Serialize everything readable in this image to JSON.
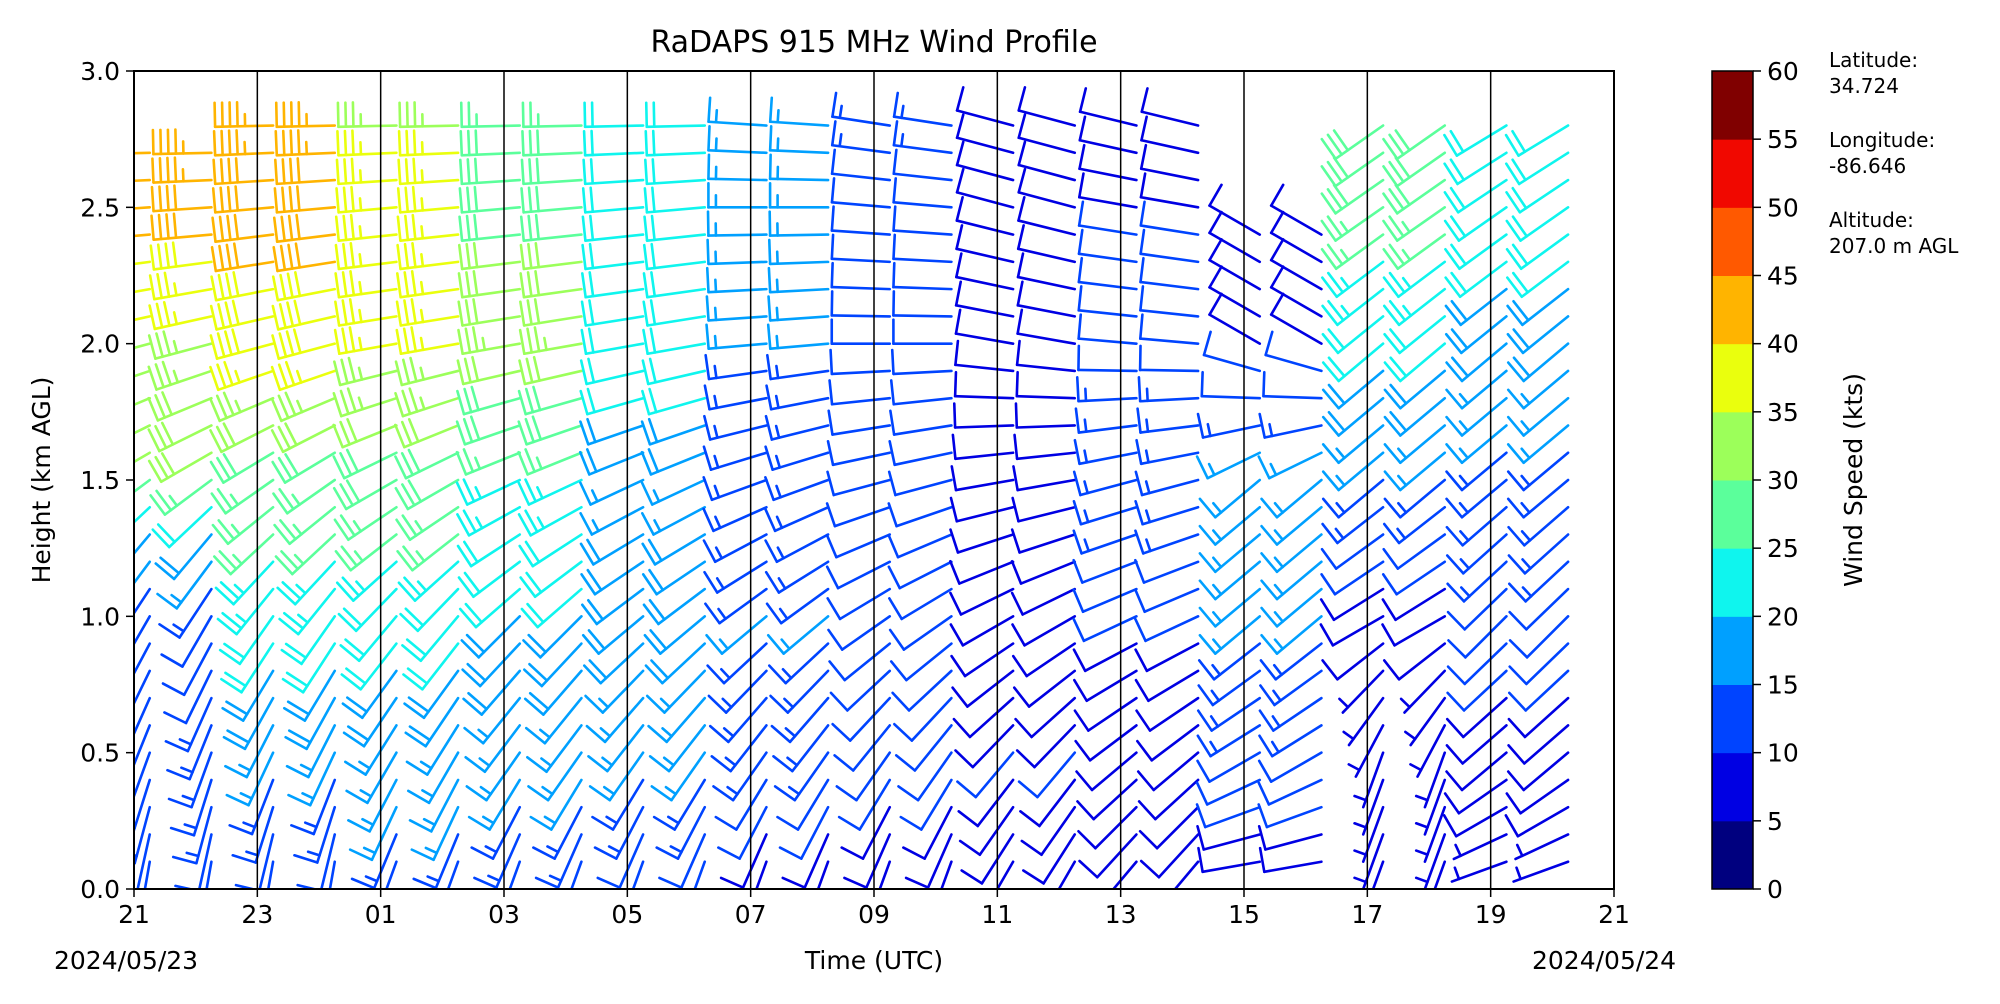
{
  "chart_data": {
    "type": "wind_barb_profile",
    "title": "RaDAPS 915 MHz Wind Profile",
    "xlabel": "Time (UTC)",
    "ylabel": "Height (km AGL)",
    "x_tick_labels": [
      "21",
      "23",
      "01",
      "03",
      "05",
      "07",
      "09",
      "11",
      "13",
      "15",
      "17",
      "19",
      "21"
    ],
    "x_ticks_hours_from_start": [
      0,
      2,
      4,
      6,
      8,
      10,
      12,
      14,
      16,
      18,
      20,
      22,
      24
    ],
    "date_start": "2024/05/23",
    "date_end": "2024/05/24",
    "ylim": [
      0.0,
      3.0
    ],
    "y_ticks": [
      0.0,
      0.5,
      1.0,
      1.5,
      2.0,
      2.5,
      3.0
    ],
    "y_tick_labels": [
      "0.0",
      "0.5",
      "1.0",
      "1.5",
      "2.0",
      "2.5",
      "3.0"
    ],
    "colorbar": {
      "label": "Wind Speed (kts)",
      "bounds": [
        0,
        5,
        10,
        15,
        20,
        25,
        30,
        35,
        40,
        45,
        50,
        55,
        60
      ],
      "tick_labels": [
        "0",
        "5",
        "10",
        "15",
        "20",
        "25",
        "30",
        "35",
        "40",
        "45",
        "50",
        "55",
        "60"
      ],
      "colors": [
        "#00007f",
        "#0000e3",
        "#0044ff",
        "#00a0ff",
        "#0ff5ee",
        "#5bff9b",
        "#9cff5a",
        "#eaff0d",
        "#ffb400",
        "#ff5900",
        "#f10800",
        "#800000"
      ]
    },
    "site_info": {
      "latitude_label": "Latitude:",
      "latitude": "34.724",
      "longitude_label": "Longitude:",
      "longitude": "-86.646",
      "altitude_label": "Altitude:",
      "altitude": "207.0 m AGL"
    },
    "profile_groups": [
      {
        "start": "21",
        "levels": [
          {
            "h": 0.1,
            "speed": 12,
            "dir": 190
          },
          {
            "h": 0.5,
            "speed": 13,
            "dir": 200
          },
          {
            "h": 1.0,
            "speed": 12,
            "dir": 210
          },
          {
            "h": 1.3,
            "speed": 18,
            "dir": 220
          },
          {
            "h": 1.6,
            "speed": 30,
            "dir": 240
          },
          {
            "h": 2.0,
            "speed": 34,
            "dir": 255
          },
          {
            "h": 2.4,
            "speed": 40,
            "dir": 265
          },
          {
            "h": 2.8,
            "speed": 46,
            "dir": 270
          }
        ]
      },
      {
        "start": "23",
        "levels": [
          {
            "h": 0.1,
            "speed": 10,
            "dir": 190
          },
          {
            "h": 0.5,
            "speed": 15,
            "dir": 205
          },
          {
            "h": 1.0,
            "speed": 22,
            "dir": 215
          },
          {
            "h": 1.5,
            "speed": 27,
            "dir": 235
          },
          {
            "h": 2.0,
            "speed": 38,
            "dir": 255
          },
          {
            "h": 2.5,
            "speed": 42,
            "dir": 265
          },
          {
            "h": 2.9,
            "speed": 43,
            "dir": 270
          }
        ]
      },
      {
        "start": "01",
        "levels": [
          {
            "h": 0.1,
            "speed": 14,
            "dir": 200
          },
          {
            "h": 0.5,
            "speed": 16,
            "dir": 210
          },
          {
            "h": 1.0,
            "speed": 21,
            "dir": 220
          },
          {
            "h": 1.5,
            "speed": 28,
            "dir": 240
          },
          {
            "h": 2.0,
            "speed": 36,
            "dir": 260
          },
          {
            "h": 2.5,
            "speed": 37,
            "dir": 265
          },
          {
            "h": 2.9,
            "speed": 34,
            "dir": 270
          }
        ]
      },
      {
        "start": "03",
        "levels": [
          {
            "h": 0.1,
            "speed": 13,
            "dir": 200
          },
          {
            "h": 0.5,
            "speed": 16,
            "dir": 215
          },
          {
            "h": 1.0,
            "speed": 19,
            "dir": 225
          },
          {
            "h": 1.5,
            "speed": 24,
            "dir": 245
          },
          {
            "h": 2.0,
            "speed": 33,
            "dir": 260
          },
          {
            "h": 2.5,
            "speed": 29,
            "dir": 265
          },
          {
            "h": 2.9,
            "speed": 27,
            "dir": 270
          }
        ]
      },
      {
        "start": "05",
        "levels": [
          {
            "h": 0.1,
            "speed": 11,
            "dir": 200
          },
          {
            "h": 0.5,
            "speed": 15,
            "dir": 215
          },
          {
            "h": 1.0,
            "speed": 19,
            "dir": 230
          },
          {
            "h": 1.5,
            "speed": 17,
            "dir": 245
          },
          {
            "h": 2.0,
            "speed": 22,
            "dir": 260
          },
          {
            "h": 2.5,
            "speed": 21,
            "dir": 265
          },
          {
            "h": 2.9,
            "speed": 20,
            "dir": 270
          }
        ]
      },
      {
        "start": "07",
        "levels": [
          {
            "h": 0.1,
            "speed": 8,
            "dir": 200
          },
          {
            "h": 0.5,
            "speed": 13,
            "dir": 215
          },
          {
            "h": 1.0,
            "speed": 15,
            "dir": 230
          },
          {
            "h": 1.5,
            "speed": 13,
            "dir": 250
          },
          {
            "h": 2.0,
            "speed": 15,
            "dir": 265
          },
          {
            "h": 2.5,
            "speed": 15,
            "dir": 270
          },
          {
            "h": 2.9,
            "speed": 15,
            "dir": 275
          }
        ]
      },
      {
        "start": "09",
        "levels": [
          {
            "h": 0.1,
            "speed": 8,
            "dir": 200
          },
          {
            "h": 0.5,
            "speed": 11,
            "dir": 215
          },
          {
            "h": 1.0,
            "speed": 10,
            "dir": 235
          },
          {
            "h": 1.5,
            "speed": 10,
            "dir": 255
          },
          {
            "h": 2.0,
            "speed": 12,
            "dir": 270
          },
          {
            "h": 2.5,
            "speed": 12,
            "dir": 275
          },
          {
            "h": 2.9,
            "speed": 13,
            "dir": 280
          }
        ]
      },
      {
        "start": "11",
        "levels": [
          {
            "h": 0.1,
            "speed": 9,
            "dir": 210
          },
          {
            "h": 0.5,
            "speed": 10,
            "dir": 220
          },
          {
            "h": 1.0,
            "speed": 8,
            "dir": 240
          },
          {
            "h": 1.5,
            "speed": 8,
            "dir": 260
          },
          {
            "h": 2.0,
            "speed": 9,
            "dir": 280
          },
          {
            "h": 2.5,
            "speed": 10,
            "dir": 285
          },
          {
            "h": 2.9,
            "speed": 9,
            "dir": 285
          }
        ]
      },
      {
        "start": "13",
        "levels": [
          {
            "h": 0.1,
            "speed": 9,
            "dir": 220
          },
          {
            "h": 0.5,
            "speed": 9,
            "dir": 230
          },
          {
            "h": 1.0,
            "speed": 10,
            "dir": 245
          },
          {
            "h": 1.5,
            "speed": 15,
            "dir": 255
          },
          {
            "h": 2.0,
            "speed": 11,
            "dir": 275
          },
          {
            "h": 2.5,
            "speed": 10,
            "dir": 280
          },
          {
            "h": 2.9,
            "speed": 9,
            "dir": 285
          }
        ]
      },
      {
        "start": "15",
        "levels": [
          {
            "h": 0.1,
            "speed": 8,
            "dir": 260
          },
          {
            "h": 0.5,
            "speed": 12,
            "dir": 240
          },
          {
            "h": 1.0,
            "speed": 15,
            "dir": 230
          },
          {
            "h": 1.5,
            "speed": 17,
            "dir": 230
          },
          {
            "h": 2.0,
            "speed": 9,
            "dir": 300
          },
          {
            "h": 2.5,
            "speed": 8,
            "dir": 300
          }
        ]
      },
      {
        "start": "17",
        "levels": [
          {
            "h": 0.5,
            "speed": 6,
            "dir": 200
          },
          {
            "h": 1.0,
            "speed": 8,
            "dir": 240
          },
          {
            "h": 1.5,
            "speed": 14,
            "dir": 230
          },
          {
            "h": 2.0,
            "speed": 20,
            "dir": 230
          },
          {
            "h": 2.5,
            "speed": 27,
            "dir": 235
          },
          {
            "h": 2.9,
            "speed": 30,
            "dir": 235
          }
        ]
      },
      {
        "start": "19",
        "levels": [
          {
            "h": 0.1,
            "speed": 7,
            "dir": 250
          },
          {
            "h": 0.5,
            "speed": 8,
            "dir": 230
          },
          {
            "h": 1.0,
            "speed": 12,
            "dir": 225
          },
          {
            "h": 1.5,
            "speed": 14,
            "dir": 230
          },
          {
            "h": 2.0,
            "speed": 18,
            "dir": 230
          },
          {
            "h": 2.5,
            "speed": 22,
            "dir": 235
          },
          {
            "h": 2.9,
            "speed": 22,
            "dir": 240
          }
        ]
      }
    ]
  }
}
